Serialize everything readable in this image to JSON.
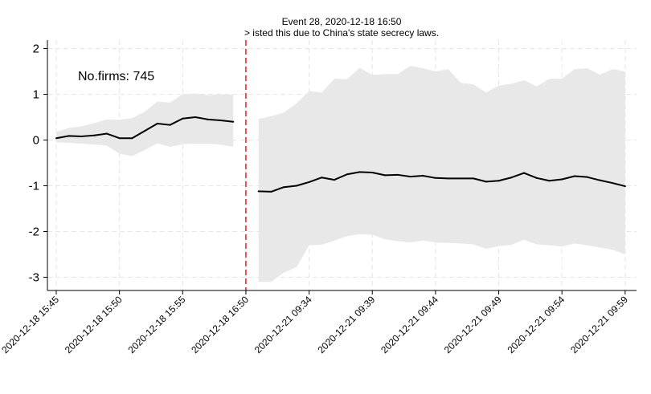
{
  "chart_data": {
    "type": "line",
    "title": "Event 28, 2020-12-18 16:50",
    "subtitle": "> isted this due to China's state secrecy laws.",
    "annotation": "No.firms: 745",
    "xlabel": "",
    "ylabel": "",
    "ylim": [
      -3.3,
      2.2
    ],
    "yticks": [
      2,
      1,
      0,
      -1,
      -2,
      -3
    ],
    "ytick_labels": [
      "2",
      "1",
      "0",
      "-1",
      "-2",
      "-3"
    ],
    "grid": true,
    "event_line": {
      "x_index": 15,
      "color": "#dd0000",
      "style": "dashed"
    },
    "xtick_positions": [
      0,
      5,
      10,
      15,
      20,
      25,
      30,
      35,
      40,
      45
    ],
    "xtick_labels": [
      "2020-12-18 15:45",
      "2020-12-18 15:50",
      "2020-12-18 15:55",
      "2020-12-18 16:50",
      "2020-12-21 09:34",
      "2020-12-21 09:39",
      "2020-12-21 09:44",
      "2020-12-21 09:49",
      "2020-12-21 09:54",
      "2020-12-21 09:59"
    ],
    "segments": [
      {
        "x": [
          0,
          1,
          2,
          3,
          4,
          5,
          6,
          7,
          8,
          9,
          10,
          11,
          12,
          13,
          14
        ],
        "mean": [
          0.04,
          0.09,
          0.08,
          0.1,
          0.14,
          0.04,
          0.04,
          0.2,
          0.36,
          0.33,
          0.47,
          0.5,
          0.45,
          0.43,
          0.4
        ],
        "upper": [
          0.18,
          0.26,
          0.3,
          0.37,
          0.45,
          0.44,
          0.48,
          0.62,
          0.84,
          0.82,
          1.0,
          1.02,
          0.98,
          1.0,
          0.99
        ],
        "lower": [
          -0.05,
          -0.06,
          -0.08,
          -0.1,
          -0.12,
          -0.3,
          -0.35,
          -0.22,
          -0.07,
          -0.15,
          -0.09,
          -0.08,
          -0.08,
          -0.1,
          -0.15
        ]
      },
      {
        "x": [
          16,
          17,
          18,
          19,
          20,
          21,
          22,
          23,
          24,
          25,
          26,
          27,
          28,
          29,
          30,
          31,
          32,
          33,
          34,
          35,
          36,
          37,
          38,
          39,
          40,
          41,
          42,
          43,
          44,
          45
        ],
        "mean": [
          -1.12,
          -1.13,
          -1.03,
          -1.0,
          -0.92,
          -0.82,
          -0.87,
          -0.75,
          -0.7,
          -0.71,
          -0.77,
          -0.76,
          -0.8,
          -0.78,
          -0.83,
          -0.84,
          -0.84,
          -0.84,
          -0.91,
          -0.89,
          -0.82,
          -0.72,
          -0.83,
          -0.89,
          -0.86,
          -0.79,
          -0.81,
          -0.88,
          -0.94,
          -1.01
        ],
        "upper": [
          0.46,
          0.52,
          0.6,
          0.8,
          1.07,
          1.04,
          1.34,
          1.33,
          1.58,
          1.42,
          1.44,
          1.44,
          1.62,
          1.57,
          1.5,
          1.55,
          1.25,
          1.22,
          1.04,
          1.19,
          1.23,
          1.31,
          1.17,
          1.34,
          1.34,
          1.55,
          1.57,
          1.43,
          1.55,
          1.5
        ],
        "lower": [
          -3.1,
          -3.1,
          -2.9,
          -2.78,
          -2.3,
          -2.29,
          -2.2,
          -2.1,
          -2.06,
          -2.07,
          -2.17,
          -2.21,
          -2.24,
          -2.2,
          -2.24,
          -2.25,
          -2.26,
          -2.28,
          -2.38,
          -2.32,
          -2.29,
          -2.18,
          -2.28,
          -2.3,
          -2.33,
          -2.26,
          -2.3,
          -2.35,
          -2.4,
          -2.5
        ]
      }
    ],
    "colors": {
      "band": "#e8e8e8",
      "line": "#000000",
      "grid": "#e6e6e6",
      "event": "#dd0000"
    }
  }
}
